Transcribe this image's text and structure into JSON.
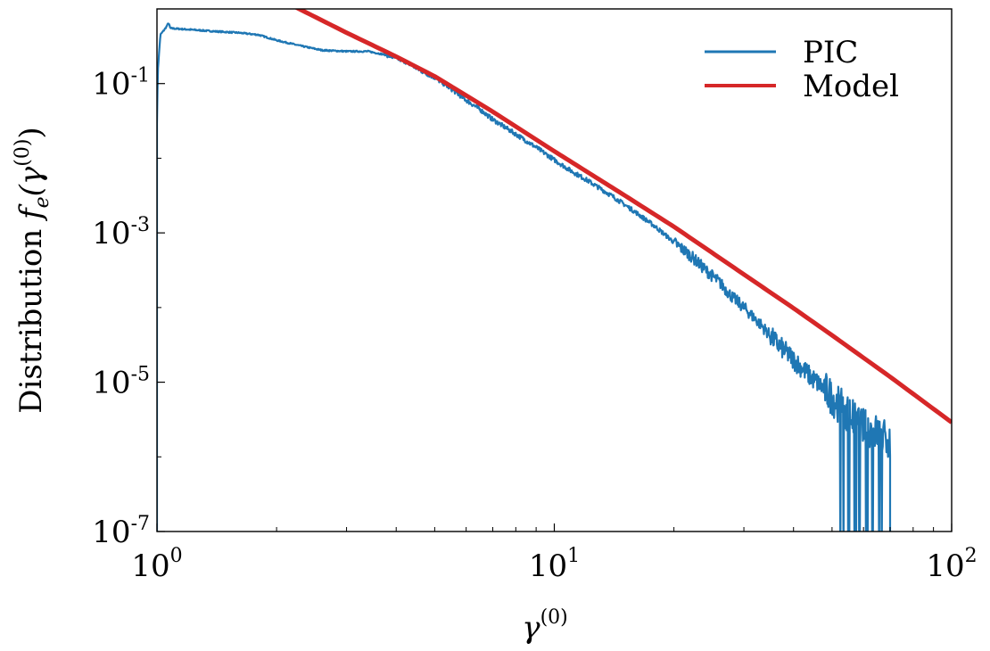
{
  "chart_data": {
    "type": "line",
    "xlabel_base": "γ",
    "xlabel_sup": "(0)",
    "ylabel_prefix": "Distribution ",
    "ylabel_f": "f",
    "ylabel_sub": "e",
    "ylabel_open": "(γ",
    "ylabel_sup": "(0)",
    "ylabel_close": ")",
    "xscale": "log",
    "yscale": "log",
    "xlim": [
      1,
      100
    ],
    "ylim": [
      1e-07,
      1
    ],
    "x_ticks": [
      {
        "value": 1,
        "base": "10",
        "exp": "0"
      },
      {
        "value": 10,
        "base": "10",
        "exp": "1"
      },
      {
        "value": 100,
        "base": "10",
        "exp": "2"
      }
    ],
    "y_ticks": [
      {
        "value": 0.1,
        "base": "10",
        "exp": "-1"
      },
      {
        "value": 0.001,
        "base": "10",
        "exp": "-3"
      },
      {
        "value": 1e-05,
        "base": "10",
        "exp": "-5"
      },
      {
        "value": 1e-07,
        "base": "10",
        "exp": "-7"
      }
    ],
    "grid": false,
    "legend_position": "top-right",
    "series": [
      {
        "name": "PIC",
        "color": "#1f77b4",
        "style": "noisy",
        "x": [
          1.0,
          1.005,
          1.02,
          1.05,
          1.07,
          1.08,
          1.2,
          1.4,
          1.6,
          1.8,
          2.0,
          2.3,
          2.6,
          3.0,
          3.4,
          3.8,
          4.2,
          4.6,
          5.0,
          5.5,
          6.0,
          6.5,
          7.0,
          8.0,
          9.0,
          10.0,
          11.0,
          12.0,
          14.0,
          16.0,
          18.0,
          20.0,
          22.0,
          24.0,
          26.0,
          28.0,
          30.0,
          33.0,
          36.0,
          40.0,
          44.0,
          48.0,
          52.0,
          56.0,
          60.0,
          64.0,
          68.0,
          70.0
        ],
        "y": [
          0.03,
          0.15,
          0.45,
          0.55,
          0.65,
          0.55,
          0.53,
          0.5,
          0.48,
          0.45,
          0.38,
          0.32,
          0.28,
          0.27,
          0.27,
          0.24,
          0.2,
          0.15,
          0.12,
          0.085,
          0.06,
          0.045,
          0.033,
          0.021,
          0.014,
          0.0095,
          0.0068,
          0.0052,
          0.0031,
          0.0019,
          0.0012,
          0.00075,
          0.0005,
          0.00032,
          0.00022,
          0.00014,
          0.0001,
          6e-05,
          3.5e-05,
          2e-05,
          1.2e-05,
          8e-06,
          5e-06,
          3.5e-06,
          2.5e-06,
          2.2e-06,
          1.8e-06,
          1.5e-06
        ]
      },
      {
        "name": "Model",
        "color": "#d62728",
        "style": "smooth",
        "x": [
          2.2,
          3,
          4,
          5,
          7,
          10,
          15,
          20,
          30,
          40,
          50,
          70,
          100
        ],
        "y": [
          1.1,
          0.48,
          0.23,
          0.125,
          0.042,
          0.0124,
          0.0032,
          0.00121,
          0.000278,
          9.8e-05,
          4.25e-05,
          1.18e-05,
          2.9e-06
        ]
      }
    ]
  }
}
